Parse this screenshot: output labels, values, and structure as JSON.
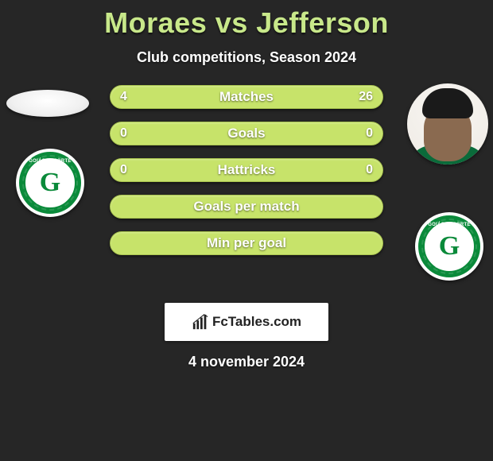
{
  "header": {
    "title": "Moraes vs Jefferson",
    "subtitle": "Club competitions, Season 2024"
  },
  "players": {
    "left": {
      "name": "Moraes",
      "club": "Goiás Esporte Clube",
      "club_abbrev": "G",
      "club_ring_color": "#0a8a3a",
      "club_text_top": "GOIÁS ESPORTE",
      "club_text_bot": "· 6·4·1943 ·"
    },
    "right": {
      "name": "Jefferson",
      "club": "Goiás Esporte Clube",
      "club_abbrev": "G",
      "club_ring_color": "#0a8a3a",
      "club_text_top": "GOIÁS ESPORTE",
      "club_text_bot": "· 6·4·1943 ·"
    }
  },
  "bars": {
    "bar_bg": "#c7e36a",
    "bar_border": "#a8c34e",
    "label_color": "#ffffff",
    "label_fontsize": 17,
    "value_fontsize": 16,
    "rows": [
      {
        "key": "matches",
        "label": "Matches",
        "left": "4",
        "right": "26",
        "left_pct": 13,
        "right_pct": 87
      },
      {
        "key": "goals",
        "label": "Goals",
        "left": "0",
        "right": "0",
        "left_pct": 50,
        "right_pct": 50
      },
      {
        "key": "hattricks",
        "label": "Hattricks",
        "left": "0",
        "right": "0",
        "left_pct": 50,
        "right_pct": 50
      },
      {
        "key": "gpm",
        "label": "Goals per match",
        "left": "",
        "right": "",
        "left_pct": 50,
        "right_pct": 50
      },
      {
        "key": "mpg",
        "label": "Min per goal",
        "left": "",
        "right": "",
        "left_pct": 50,
        "right_pct": 50
      }
    ]
  },
  "branding": {
    "site": "FcTables.com"
  },
  "footer": {
    "date": "4 november 2024"
  },
  "colors": {
    "page_bg": "#262626",
    "title_color": "#c8e88a",
    "text_color": "#ffffff"
  }
}
